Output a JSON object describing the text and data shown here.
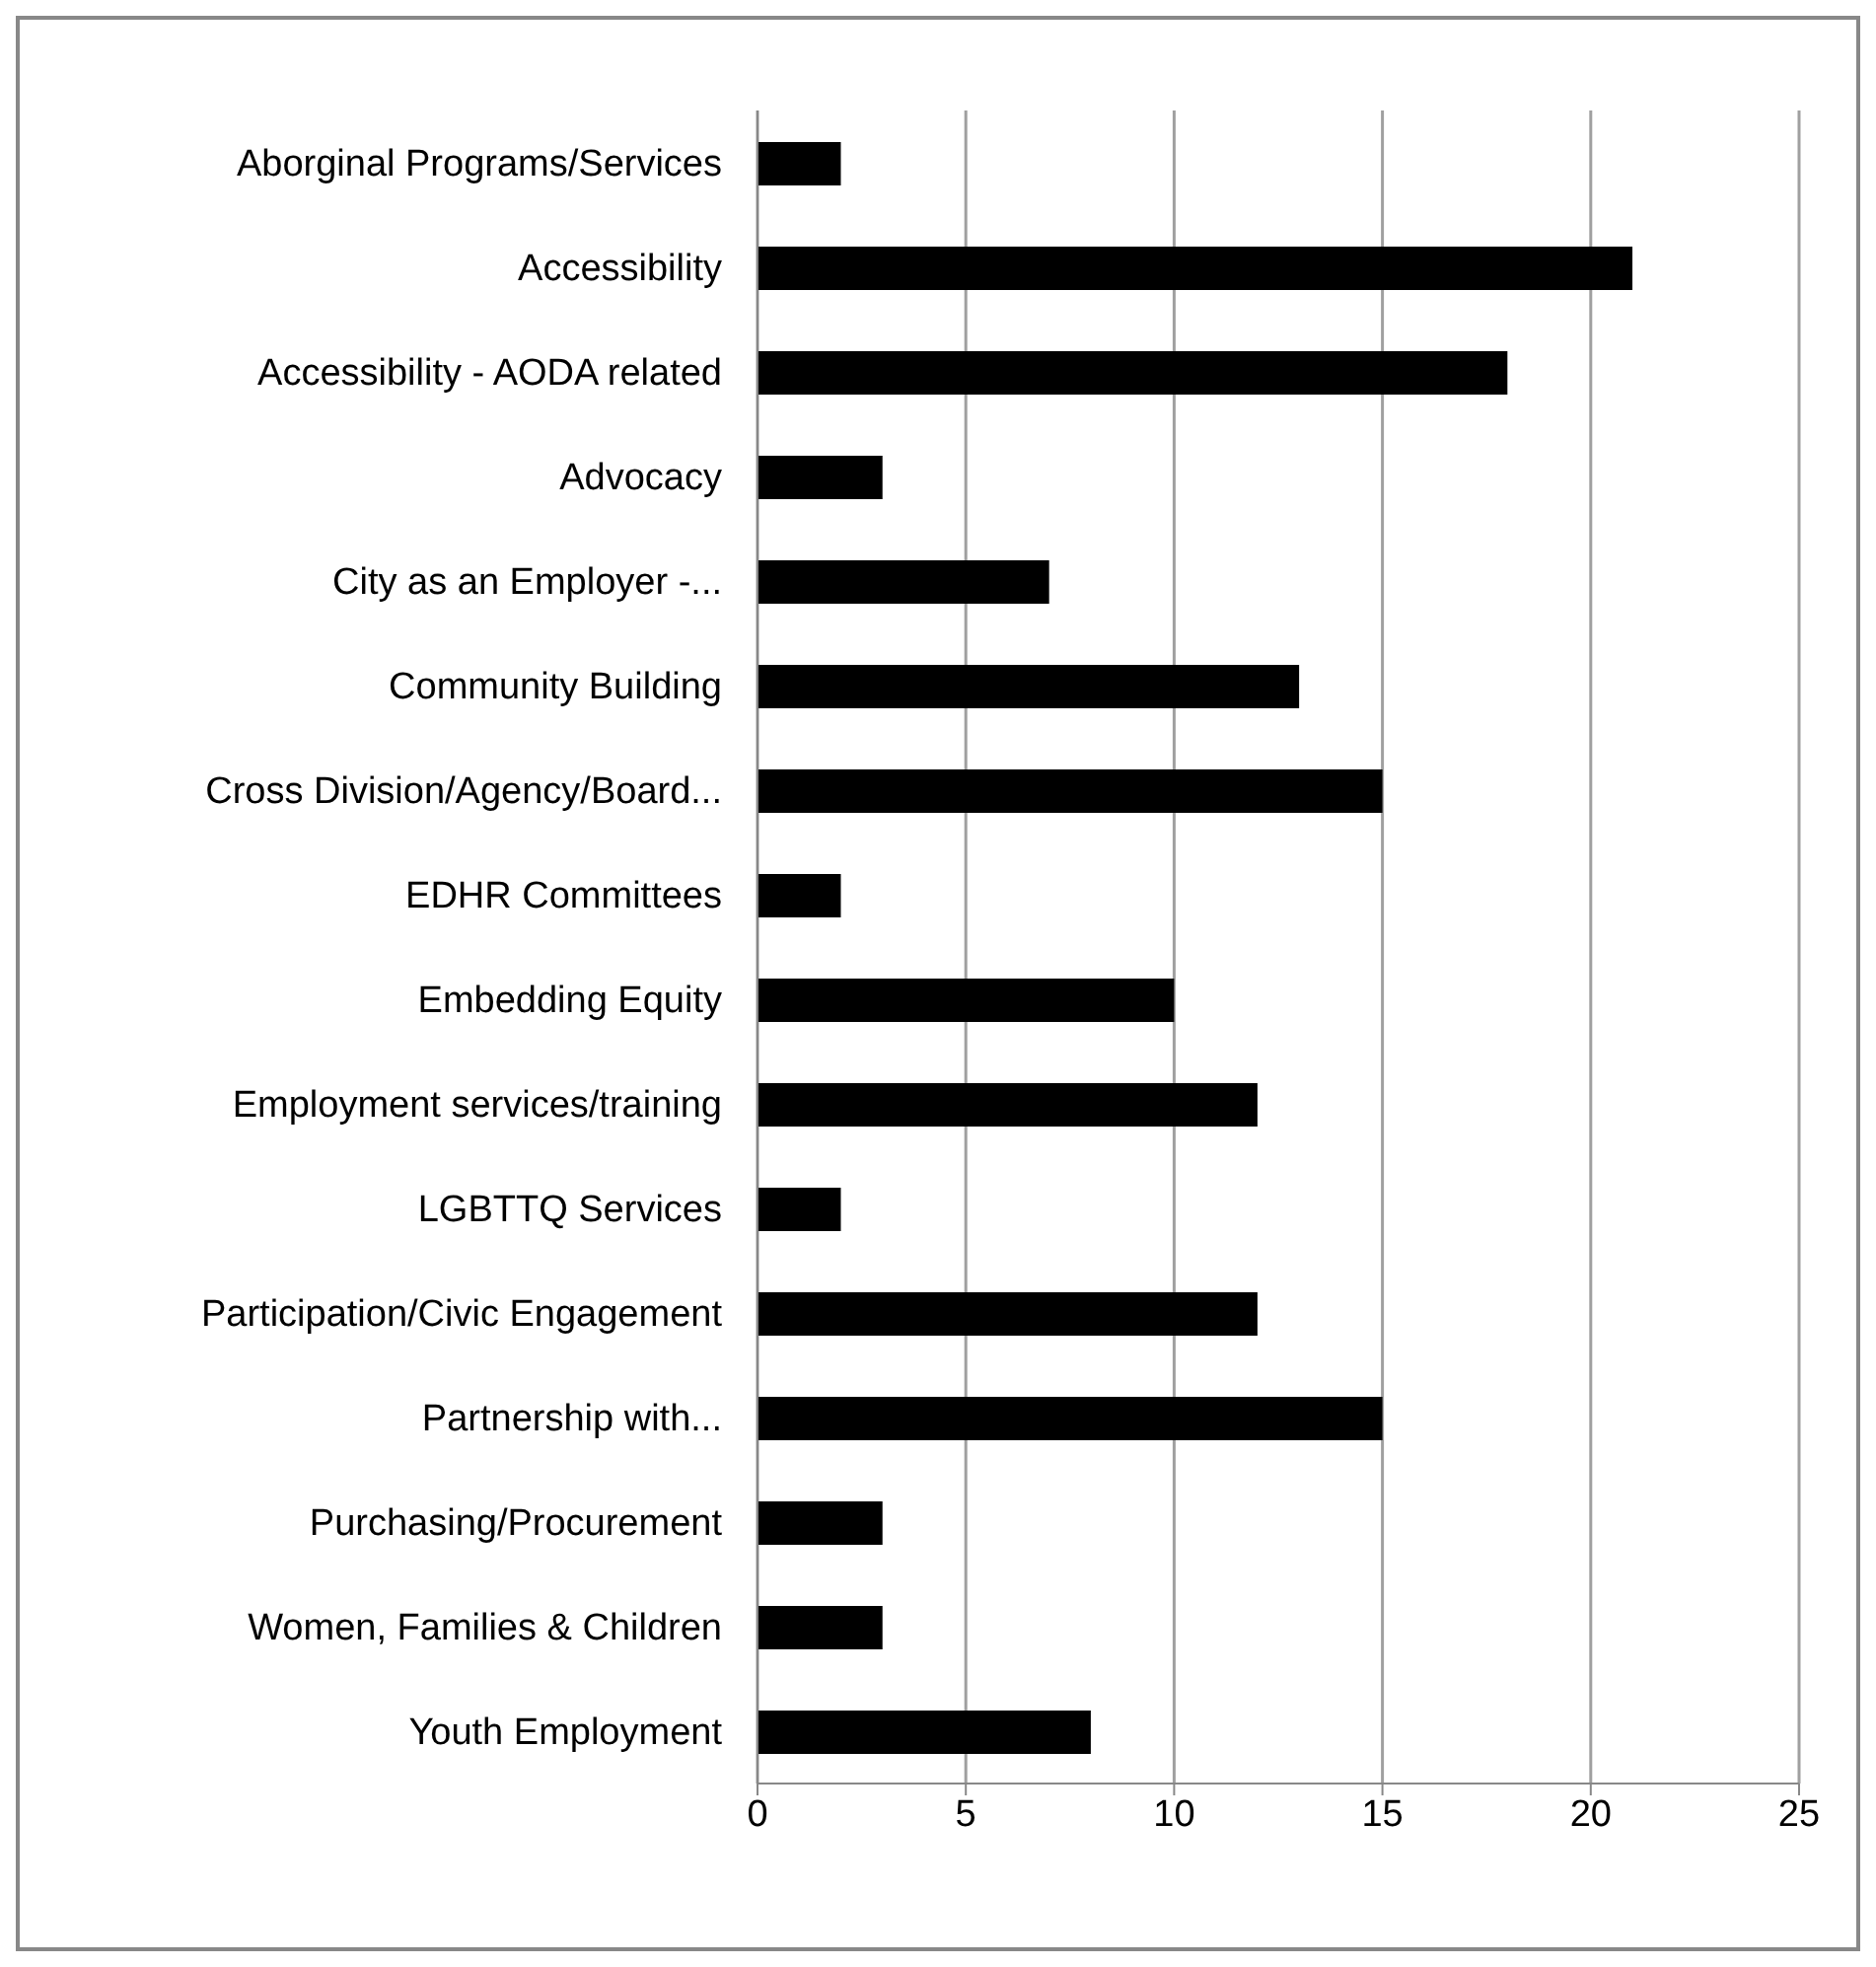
{
  "chart_data": {
    "type": "bar",
    "orientation": "horizontal",
    "categories": [
      "Aborginal Programs/Services",
      "Accessibility",
      "Accessibility - AODA related",
      "Advocacy",
      "City as an Employer -...",
      "Community Building",
      "Cross Division/Agency/Board...",
      "EDHR Committees",
      "Embedding Equity",
      "Employment services/training",
      "LGBTTQ Services",
      "Participation/Civic Engagement",
      "Partnership with...",
      "Purchasing/Procurement",
      "Women, Families & Children",
      "Youth Employment"
    ],
    "values": [
      2,
      21,
      18,
      3,
      7,
      13,
      15,
      2,
      10,
      12,
      2,
      12,
      15,
      3,
      3,
      8
    ],
    "color": "#000000",
    "xlim": [
      0,
      25
    ],
    "xticks": [
      0,
      5,
      10,
      15,
      20,
      25
    ],
    "grid": "x",
    "legend": false
  }
}
